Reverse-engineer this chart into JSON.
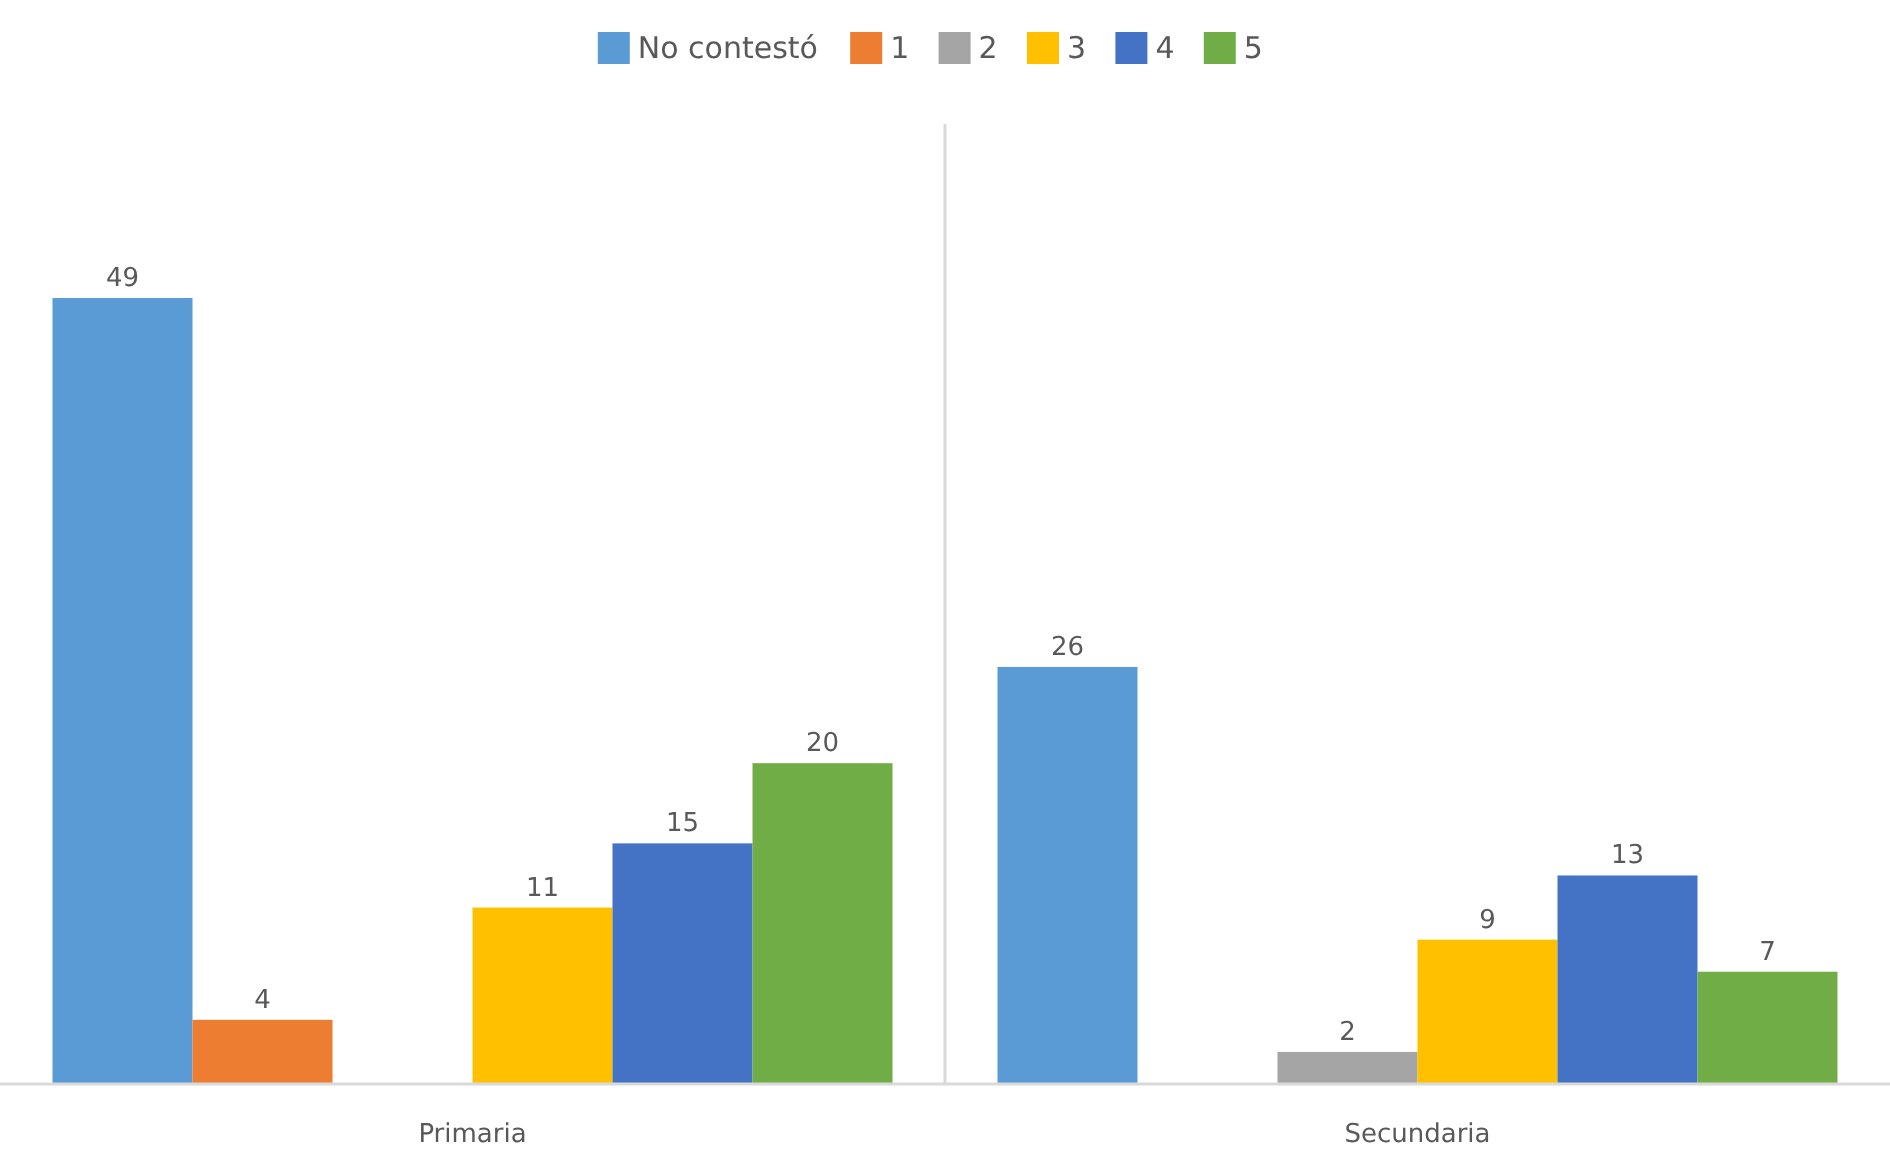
{
  "chart_data": {
    "type": "bar",
    "categories": [
      "Primaria",
      "Secundaria"
    ],
    "series": [
      {
        "name": "No contestó",
        "color": "#5b9bd5",
        "values": [
          49,
          26
        ]
      },
      {
        "name": "1",
        "color": "#ed7d31",
        "values": [
          4,
          null
        ]
      },
      {
        "name": "2",
        "color": "#a5a5a5",
        "values": [
          null,
          2
        ]
      },
      {
        "name": "3",
        "color": "#ffc000",
        "values": [
          11,
          9
        ]
      },
      {
        "name": "4",
        "color": "#4472c4",
        "values": [
          15,
          13
        ]
      },
      {
        "name": "5",
        "color": "#70ad47",
        "values": [
          20,
          7
        ]
      }
    ],
    "data_labels": true,
    "legend": "top"
  }
}
